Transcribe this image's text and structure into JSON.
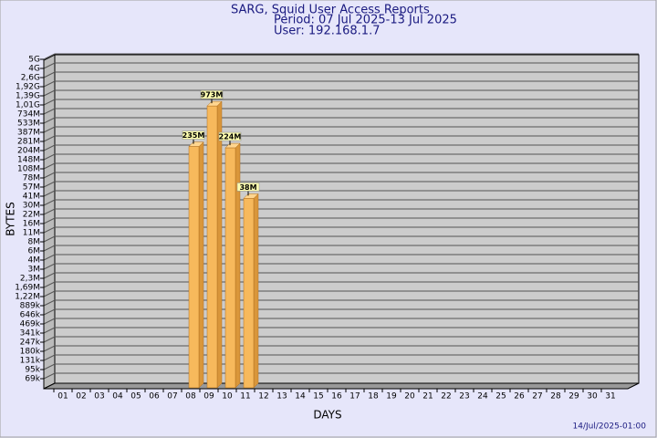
{
  "chart_data": {
    "type": "bar",
    "title": "SARG, Squid User Access Reports",
    "subtitle": [
      "Period: 07 Jul 2025-13 Jul 2025",
      "User: 192.168.1.7"
    ],
    "xlabel": "DAYS",
    "ylabel": "BYTES",
    "timestamp": "14/Jul/2025-01:00",
    "categories": [
      "01",
      "02",
      "03",
      "04",
      "05",
      "06",
      "07",
      "08",
      "09",
      "10",
      "11",
      "12",
      "13",
      "14",
      "15",
      "16",
      "17",
      "18",
      "19",
      "20",
      "21",
      "22",
      "23",
      "24",
      "25",
      "26",
      "27",
      "28",
      "29",
      "30",
      "31"
    ],
    "values": [
      null,
      null,
      null,
      null,
      null,
      null,
      null,
      235000000,
      973000000,
      224000000,
      38000000,
      null,
      null,
      null,
      null,
      null,
      null,
      null,
      null,
      null,
      null,
      null,
      null,
      null,
      null,
      null,
      null,
      null,
      null,
      null,
      null
    ],
    "value_labels": [
      null,
      null,
      null,
      null,
      null,
      null,
      null,
      "235M",
      "973M",
      "224M",
      "38M",
      null,
      null,
      null,
      null,
      null,
      null,
      null,
      null,
      null,
      null,
      null,
      null,
      null,
      null,
      null,
      null,
      null,
      null,
      null,
      null
    ],
    "color": "#f7b95c",
    "log_scale": true,
    "grid": true,
    "ylim": [
      50000,
      5000000000
    ],
    "yticks": [
      {
        "value": 69000,
        "label": "69k"
      },
      {
        "value": 95000,
        "label": "95k"
      },
      {
        "value": 131000,
        "label": "131k"
      },
      {
        "value": 180000,
        "label": "180k"
      },
      {
        "value": 247000,
        "label": "247k"
      },
      {
        "value": 341000,
        "label": "341k"
      },
      {
        "value": 469000,
        "label": "469k"
      },
      {
        "value": 646000,
        "label": "646k"
      },
      {
        "value": 889000,
        "label": "889k"
      },
      {
        "value": 1220000,
        "label": "1,22M"
      },
      {
        "value": 1690000,
        "label": "1,69M"
      },
      {
        "value": 2300000,
        "label": "2,3M"
      },
      {
        "value": 3000000,
        "label": "3M"
      },
      {
        "value": 4000000,
        "label": "4M"
      },
      {
        "value": 6000000,
        "label": "6M"
      },
      {
        "value": 8000000,
        "label": "8M"
      },
      {
        "value": 11000000,
        "label": "11M"
      },
      {
        "value": 16000000,
        "label": "16M"
      },
      {
        "value": 22000000,
        "label": "22M"
      },
      {
        "value": 30000000,
        "label": "30M"
      },
      {
        "value": 41000000,
        "label": "41M"
      },
      {
        "value": 57000000,
        "label": "57M"
      },
      {
        "value": 78000000,
        "label": "78M"
      },
      {
        "value": 108000000,
        "label": "108M"
      },
      {
        "value": 148000000,
        "label": "148M"
      },
      {
        "value": 204000000,
        "label": "204M"
      },
      {
        "value": 281000000,
        "label": "281M"
      },
      {
        "value": 387000000,
        "label": "387M"
      },
      {
        "value": 533000000,
        "label": "533M"
      },
      {
        "value": 734000000,
        "label": "734M"
      },
      {
        "value": 1010000000,
        "label": "1,01G"
      },
      {
        "value": 1390000000,
        "label": "1,39G"
      },
      {
        "value": 1920000000,
        "label": "1,92G"
      },
      {
        "value": 2600000000,
        "label": "2,6G"
      },
      {
        "value": 4000000000,
        "label": "4G"
      },
      {
        "value": 5000000000,
        "label": "5G"
      }
    ]
  }
}
